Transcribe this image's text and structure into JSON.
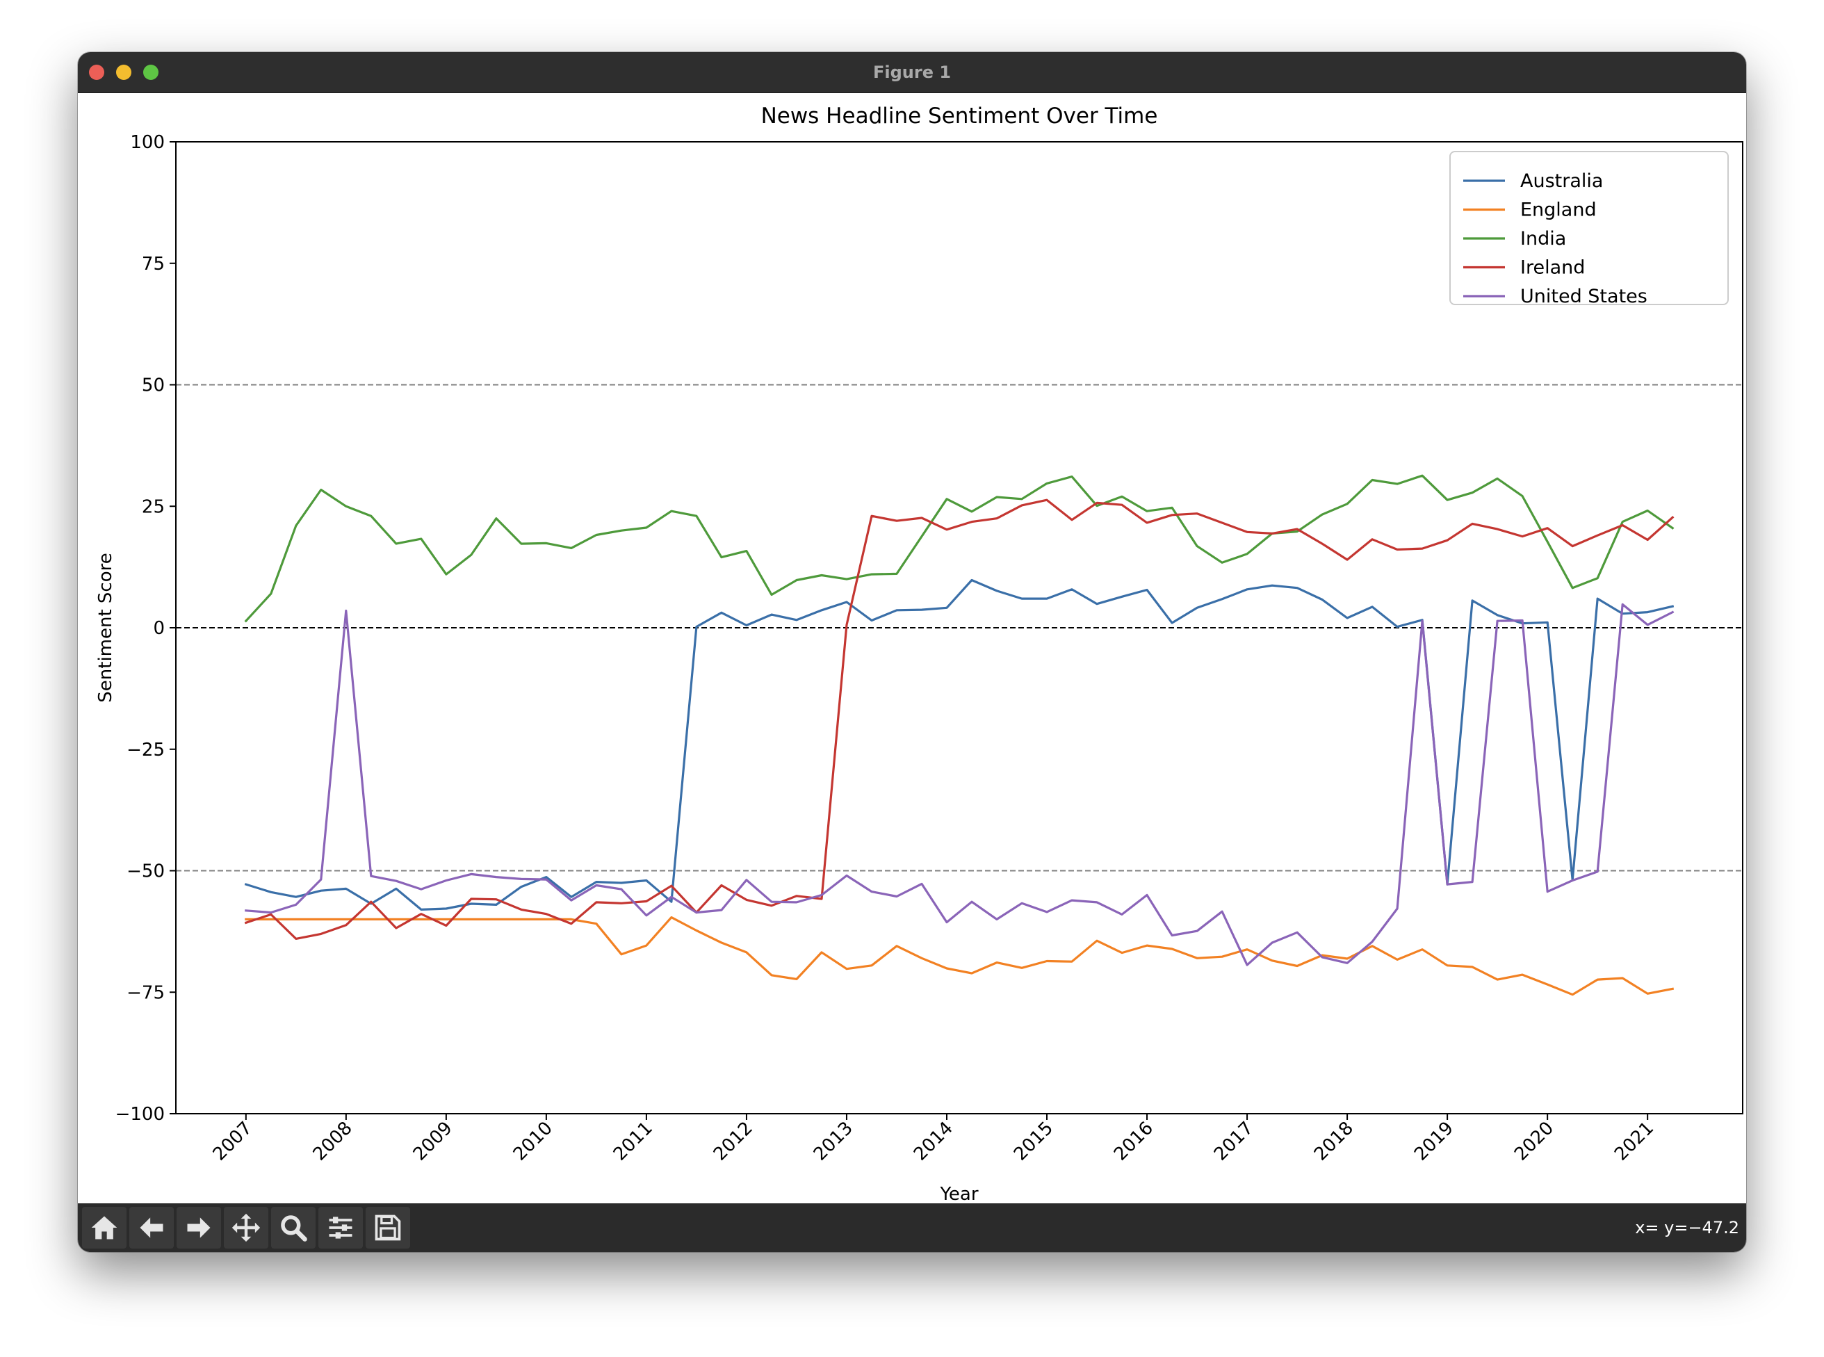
{
  "window": {
    "title": "Figure 1"
  },
  "toolbar": {
    "buttons": [
      {
        "name": "home-button",
        "icon": "home-icon"
      },
      {
        "name": "back-button",
        "icon": "arrow-left-icon"
      },
      {
        "name": "forward-button",
        "icon": "arrow-right-icon"
      },
      {
        "name": "pan-button",
        "icon": "move-icon"
      },
      {
        "name": "zoom-button",
        "icon": "magnifier-icon"
      },
      {
        "name": "configure-subplots-button",
        "icon": "sliders-icon"
      },
      {
        "name": "save-button",
        "icon": "floppy-disk-icon"
      }
    ],
    "coords": "x= y=−47.2"
  },
  "chart_data": {
    "type": "line",
    "title": "News Headline Sentiment Over Time",
    "xlabel": "Year",
    "ylabel": "Sentiment Score",
    "ylim": [
      -100,
      100
    ],
    "xlim": [
      2006.3,
      2021.95
    ],
    "yticks": [
      -100,
      -75,
      -50,
      -25,
      0,
      25,
      50,
      75,
      100
    ],
    "ytick_labels": [
      "−100",
      "−75",
      "−50",
      "−25",
      "0",
      "25",
      "50",
      "75",
      "100"
    ],
    "xticks": [
      2007,
      2008,
      2009,
      2010,
      2011,
      2012,
      2013,
      2014,
      2015,
      2016,
      2017,
      2018,
      2019,
      2020,
      2021
    ],
    "xtick_labels": [
      "2007",
      "2008",
      "2009",
      "2010",
      "2011",
      "2012",
      "2013",
      "2014",
      "2015",
      "2016",
      "2017",
      "2018",
      "2019",
      "2020",
      "2021"
    ],
    "hlines": [
      {
        "y": 50,
        "style": "dashed",
        "color": "#808080"
      },
      {
        "y": 0,
        "style": "dashed",
        "color": "#000000"
      },
      {
        "y": -50,
        "style": "dashed",
        "color": "#808080"
      }
    ],
    "legend": "top-right",
    "x_start": 2007,
    "x_step": 0.25,
    "series": [
      {
        "name": "Australia",
        "color": "#3a6fa8",
        "values": [
          -52.8,
          -54.4,
          -55.4,
          -54.1,
          -53.7,
          -56.8,
          -53.7,
          -58.0,
          -57.8,
          -56.8,
          -57.0,
          -53.3,
          -51.3,
          -55.4,
          -52.3,
          -52.5,
          -52.0,
          -56.4,
          0.2,
          3.1,
          0.5,
          2.7,
          1.6,
          3.6,
          5.3,
          1.5,
          3.6,
          3.7,
          4.1,
          9.8,
          7.6,
          6.0,
          6.0,
          7.9,
          4.9,
          6.4,
          7.8,
          1.0,
          4.1,
          5.9,
          7.9,
          8.7,
          8.2,
          5.8,
          2.0,
          4.3,
          0.2,
          1.6,
          -52.8,
          5.6,
          2.6,
          0.9,
          1.1,
          -51.9,
          6.0,
          2.9,
          3.2,
          4.4
        ]
      },
      {
        "name": "England",
        "color": "#f28123",
        "values": [
          -60.0,
          -60.0,
          -60.0,
          -60.0,
          -60.0,
          -60.0,
          -60.0,
          -60.0,
          -60.0,
          -60.0,
          -60.0,
          -60.0,
          -60.0,
          -60.0,
          -60.9,
          -67.2,
          -65.4,
          -59.6,
          -62.3,
          -64.8,
          -66.8,
          -71.5,
          -72.3,
          -66.8,
          -70.2,
          -69.5,
          -65.5,
          -68.0,
          -70.1,
          -71.1,
          -68.9,
          -70.0,
          -68.6,
          -68.7,
          -64.4,
          -66.9,
          -65.4,
          -66.1,
          -68.0,
          -67.7,
          -66.2,
          -68.5,
          -69.6,
          -67.4,
          -68.1,
          -65.5,
          -68.3,
          -66.2,
          -69.5,
          -69.8,
          -72.4,
          -71.4,
          -73.4,
          -75.5,
          -72.4,
          -72.1,
          -75.3,
          -74.3
        ]
      },
      {
        "name": "India",
        "color": "#4e9a3b",
        "values": [
          1.4,
          7.0,
          21.0,
          28.4,
          25.0,
          23.0,
          17.3,
          18.3,
          11.0,
          15.0,
          22.5,
          17.3,
          17.4,
          16.4,
          19.1,
          20.0,
          20.6,
          24.0,
          23.0,
          14.5,
          15.8,
          6.8,
          9.8,
          10.8,
          10.0,
          11.0,
          11.1,
          18.8,
          26.5,
          23.9,
          26.9,
          26.5,
          29.7,
          31.1,
          25.1,
          27.0,
          24.0,
          24.7,
          16.8,
          13.4,
          15.2,
          19.4,
          19.8,
          23.3,
          25.5,
          30.4,
          29.6,
          31.3,
          26.3,
          27.8,
          30.7,
          27.1,
          17.7,
          8.2,
          10.2,
          21.8,
          24.1,
          20.5
        ]
      },
      {
        "name": "Ireland",
        "color": "#c43631",
        "values": [
          -60.7,
          -59.0,
          -64.0,
          -63.0,
          -61.2,
          -56.4,
          -61.8,
          -58.9,
          -61.3,
          -55.8,
          -55.9,
          -58.0,
          -58.9,
          -60.9,
          -56.5,
          -56.7,
          -56.3,
          -53.1,
          -58.6,
          -53.0,
          -56.0,
          -57.2,
          -55.2,
          -55.8,
          0.6,
          23.0,
          22.0,
          22.6,
          20.2,
          21.8,
          22.5,
          25.2,
          26.3,
          22.2,
          25.7,
          25.3,
          21.6,
          23.2,
          23.5,
          21.6,
          19.7,
          19.4,
          20.3,
          17.3,
          14.0,
          18.2,
          16.1,
          16.3,
          18.0,
          21.4,
          20.3,
          18.8,
          20.5,
          16.8,
          19.0,
          21.1,
          18.1,
          22.7
        ]
      },
      {
        "name": "United States",
        "color": "#8a64b8",
        "values": [
          -58.2,
          -58.6,
          -57.0,
          -51.8,
          3.5,
          -51.1,
          -52.1,
          -53.8,
          -52.0,
          -50.7,
          -51.3,
          -51.7,
          -51.8,
          -56.1,
          -53.0,
          -53.8,
          -59.2,
          -55.4,
          -58.6,
          -58.1,
          -51.9,
          -56.4,
          -56.5,
          -55.0,
          -51.0,
          -54.3,
          -55.3,
          -52.7,
          -60.6,
          -56.4,
          -60.0,
          -56.7,
          -58.5,
          -56.1,
          -56.5,
          -59.0,
          -55.0,
          -63.3,
          -62.4,
          -58.4,
          -69.4,
          -64.8,
          -62.7,
          -67.8,
          -69.0,
          -64.6,
          -57.8,
          1.4,
          -52.8,
          -52.3,
          1.4,
          1.5,
          -54.3,
          -52.0,
          -50.2,
          4.8,
          0.6,
          3.2
        ]
      }
    ]
  }
}
